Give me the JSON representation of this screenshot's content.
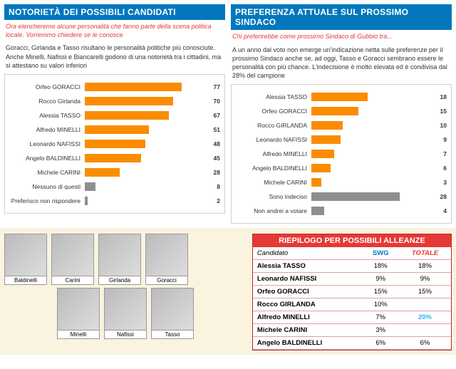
{
  "colors": {
    "header_bg": "#0277bd",
    "accent_red": "#e53935",
    "bar_orange": "#fb8c00",
    "bar_gray": "#8e8e8e",
    "highlight_blue": "#29b6f6"
  },
  "left_panel": {
    "title": "NOTORIETÀ DEI POSSIBILI CANDIDATI",
    "subtitle": "Ora elencheremo alcune personalità che fanno parte della scena politica locale. Vorremmo chiedere se le conosce",
    "blurb": "Goracci, Girlanda e Tasso risultano le personalità politiche più conosciute. Anche Minelli, Nafissi e Biancarelli godono di una notorietà tra i cittadini, ma si attestano su valori inferiori",
    "max": 100,
    "bars": [
      {
        "label": "Orfeo GORACCI",
        "value": 77,
        "color": "#fb8c00"
      },
      {
        "label": "Rocco Girlanda",
        "value": 70,
        "color": "#fb8c00"
      },
      {
        "label": "Alessia TASSO",
        "value": 67,
        "color": "#fb8c00"
      },
      {
        "label": "Alfredo MINELLI",
        "value": 51,
        "color": "#fb8c00"
      },
      {
        "label": "Leonardo NAFISSI",
        "value": 48,
        "color": "#fb8c00"
      },
      {
        "label": "Angelo BALDINELLI",
        "value": 45,
        "color": "#fb8c00"
      },
      {
        "label": "Michele CARINI",
        "value": 28,
        "color": "#fb8c00"
      },
      {
        "label": "Nessuno di questi",
        "value": 8,
        "color": "#8e8e8e"
      },
      {
        "label": "Preferisco non rispondere",
        "value": 2,
        "color": "#8e8e8e"
      }
    ]
  },
  "right_panel": {
    "title": "PREFERENZA ATTUALE SUL PROSSIMO SINDACO",
    "subtitle": "Chi preferirebbe come prossimo Sindaco di Gubbio tra...",
    "blurb": "A un anno dal voto non emerge un'indicazione netta sulle preferenze per il prossimo Sindaco anche se, ad oggi, Tasso e Goracci sembrano essere le personalità con più chance. L'indecisione è molto elevata ed è condivisa dal 28% del campione",
    "max": 40,
    "bars": [
      {
        "label": "Alessia TASSO",
        "value": 18,
        "color": "#fb8c00"
      },
      {
        "label": "Orfeo GORACCI",
        "value": 15,
        "color": "#fb8c00"
      },
      {
        "label": "Rocco GIRLANDA",
        "value": 10,
        "color": "#fb8c00"
      },
      {
        "label": "Leonardo NAFISSI",
        "value": 9,
        "color": "#fb8c00"
      },
      {
        "label": "Alfredo MINELLI",
        "value": 7,
        "color": "#fb8c00"
      },
      {
        "label": "Angelo BALDINELLI",
        "value": 6,
        "color": "#fb8c00"
      },
      {
        "label": "Michele CARINI",
        "value": 3,
        "color": "#fb8c00"
      },
      {
        "label": "Sono indeciso",
        "value": 28,
        "color": "#8e8e8e"
      },
      {
        "label": "Non andrei a votare",
        "value": 4,
        "color": "#8e8e8e"
      }
    ]
  },
  "photos_row1": [
    {
      "name": "Baldinelli"
    },
    {
      "name": "Carini"
    },
    {
      "name": "Girlanda"
    },
    {
      "name": "Goracci"
    }
  ],
  "photos_row2": [
    {
      "name": "Minelli"
    },
    {
      "name": "Nafissi"
    },
    {
      "name": "Tasso"
    }
  ],
  "table": {
    "title": "RIEPILOGO PER POSSIBILI ALLEANZE",
    "columns": [
      "Candidato",
      "SWG",
      "TOTALE"
    ],
    "rows": [
      {
        "name": "Alessia TASSO",
        "swg": "18%",
        "tot": "18%"
      },
      {
        "name": "Leonardo NAFISSI",
        "swg": "9%",
        "tot": "9%"
      },
      {
        "name": "Orfeo GORACCI",
        "swg": "15%",
        "tot": "15%"
      },
      {
        "name": "Rocco GIRLANDA",
        "swg": "10%",
        "tot": ""
      },
      {
        "name": "Alfredo MINELLI",
        "swg": "7%",
        "tot": "20%",
        "tot_color": "#29b6f6"
      },
      {
        "name": "Michele CARINI",
        "swg": "3%",
        "tot": ""
      },
      {
        "name": "Angelo BALDINELLI",
        "swg": "6%",
        "tot": "6%"
      }
    ]
  }
}
